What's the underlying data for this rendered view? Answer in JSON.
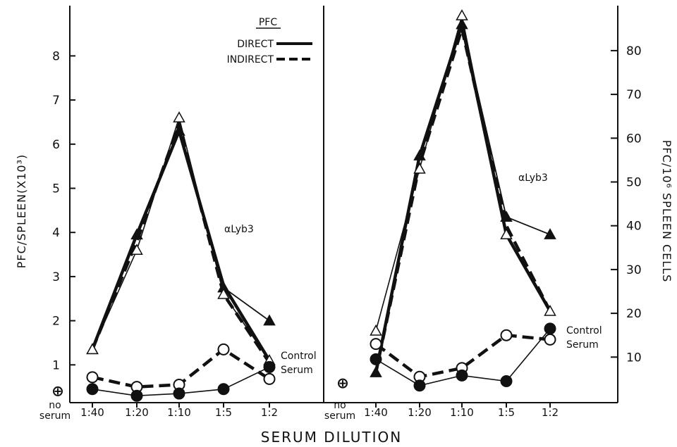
{
  "chart_data": {
    "type": "line",
    "xlabel": "SERUM DILUTION",
    "categories": [
      "no serum",
      "1:40",
      "1:20",
      "1:10",
      "1:5",
      "1:2"
    ],
    "category_labels": [
      "1:40",
      "1:20",
      "1:10",
      "1:5",
      "1:2"
    ],
    "no_serum_label": [
      "no",
      "serum"
    ],
    "left_panel": {
      "ylabel": "PFC/SPLEEN(X10³)",
      "yticks": [
        "1",
        "2",
        "3",
        "4",
        "5",
        "6",
        "7",
        "8"
      ],
      "ylim": [
        0,
        8.8
      ],
      "no_serum_value": 0.4,
      "series_label": "αLyb3",
      "control_label": [
        "Control",
        "Serum"
      ],
      "series": [
        {
          "marker": "triangle-filled",
          "line": "solid",
          "group": "alyb3",
          "values": [
            null,
            1.35,
            3.95,
            6.3,
            2.75,
            2.0
          ]
        },
        {
          "marker": "triangle-open",
          "line": "solid-thin",
          "group": "alyb3",
          "values": [
            null,
            1.35,
            3.6,
            6.6,
            2.6,
            1.1
          ]
        },
        {
          "marker": "circle-open",
          "line": "dashed",
          "group": "control",
          "values": [
            null,
            0.72,
            0.5,
            0.55,
            1.35,
            0.68
          ]
        },
        {
          "marker": "circle-filled",
          "line": "solid-thin",
          "group": "control",
          "values": [
            null,
            0.45,
            0.3,
            0.35,
            0.45,
            0.95
          ]
        }
      ],
      "thick_solid_values": [
        null,
        1.35,
        3.95,
        6.3,
        2.8,
        1.1
      ],
      "thick_dashed_values": [
        null,
        1.35,
        3.8,
        6.45,
        2.6,
        1.05
      ]
    },
    "right_panel": {
      "ylabel": "PFC/10⁶ SPLEEN CELLS",
      "yticks": [
        "10",
        "20",
        "30",
        "40",
        "50",
        "60",
        "70",
        "80"
      ],
      "ylim": [
        0,
        88
      ],
      "no_serum_value": 4,
      "series_label": "αLyb3",
      "control_label": [
        "Control",
        "Serum"
      ],
      "series": [
        {
          "marker": "triangle-filled",
          "line": "solid",
          "group": "alyb3",
          "values": [
            null,
            6.5,
            56,
            86,
            42,
            38
          ]
        },
        {
          "marker": "triangle-open",
          "line": "solid-thin",
          "group": "alyb3",
          "values": [
            null,
            16,
            53,
            88,
            38,
            20.5
          ]
        },
        {
          "marker": "circle-open",
          "line": "dashed",
          "group": "control",
          "values": [
            null,
            13,
            5.5,
            7.5,
            15,
            14
          ]
        },
        {
          "marker": "circle-filled",
          "line": "solid-thin",
          "group": "control",
          "values": [
            null,
            9.5,
            3.5,
            5.8,
            4.5,
            16.5
          ]
        }
      ],
      "thick_solid_values": [
        null,
        6.5,
        56,
        86,
        38,
        20.5
      ],
      "thick_dashed_values": [
        null,
        6.5,
        54,
        85,
        40,
        20.5
      ]
    },
    "legend": {
      "title": "PFC",
      "entries": [
        {
          "label": "DIRECT",
          "style": "solid"
        },
        {
          "label": "INDIRECT",
          "style": "dashed"
        }
      ]
    }
  }
}
